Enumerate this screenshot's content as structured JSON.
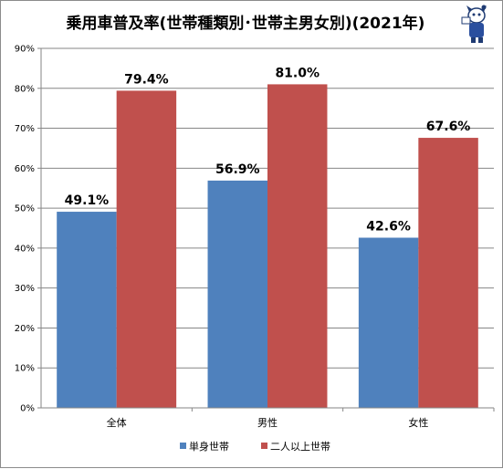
{
  "chart_data": {
    "type": "bar",
    "title": "乗用車普及率(世帯種類別･世帯主男女別)(2021年)",
    "xlabel": "",
    "ylabel": "",
    "categories": [
      "全体",
      "男性",
      "女性"
    ],
    "series": [
      {
        "name": "単身世帯",
        "values": [
          49.1,
          56.9,
          42.6
        ],
        "labels": [
          "49.1%",
          "56.9%",
          "42.6%"
        ],
        "color": "#4f81bd"
      },
      {
        "name": "二人以上世帯",
        "values": [
          79.4,
          81.0,
          67.6
        ],
        "labels": [
          "79.4%",
          "81.0%",
          "67.6%"
        ],
        "color": "#c0504d"
      }
    ],
    "ylim": [
      0,
      90
    ],
    "yticks": [
      0,
      10,
      20,
      30,
      40,
      50,
      60,
      70,
      80,
      90
    ],
    "ytick_labels": [
      "0%",
      "10%",
      "20%",
      "30%",
      "40%",
      "50%",
      "60%",
      "70%",
      "80%",
      "90%"
    ],
    "grid": true,
    "legend": "bottom",
    "colors": {
      "gridline": "#868686",
      "axis": "#868686"
    }
  }
}
